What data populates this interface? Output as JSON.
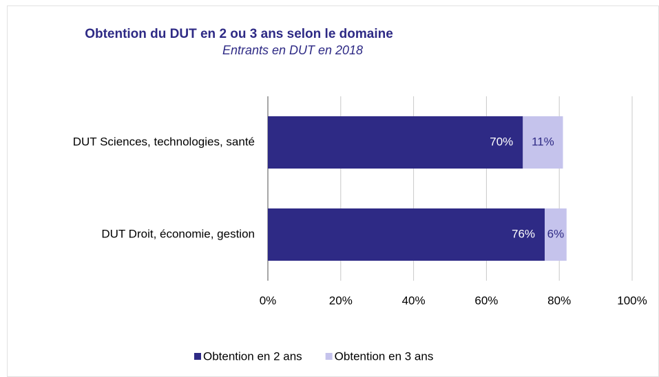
{
  "chart_data": {
    "type": "stacked-barh",
    "title": "Obtention du DUT en 2 ou 3 ans selon le domaine",
    "subtitle": "Entrants  en DUT en 2018",
    "categories": [
      "DUT Sciences, technologies, santé",
      "DUT Droit, économie, gestion"
    ],
    "series": [
      {
        "name": "Obtention en 2 ans",
        "color": "#2e2a85",
        "values": [
          70,
          76
        ],
        "value_labels": [
          "70%",
          "76%"
        ]
      },
      {
        "name": "Obtention en 3 ans",
        "color": "#c5c3ec",
        "values": [
          11,
          6
        ],
        "value_labels": [
          "11%",
          "6%"
        ]
      }
    ],
    "xlim": [
      0,
      100
    ],
    "xticks": [
      {
        "value": 0,
        "label": "0%"
      },
      {
        "value": 20,
        "label": "20%"
      },
      {
        "value": 40,
        "label": "40%"
      },
      {
        "value": 60,
        "label": "60%"
      },
      {
        "value": 80,
        "label": "80%"
      },
      {
        "value": 100,
        "label": "100%"
      }
    ],
    "grid": true,
    "legend": "bottom"
  }
}
